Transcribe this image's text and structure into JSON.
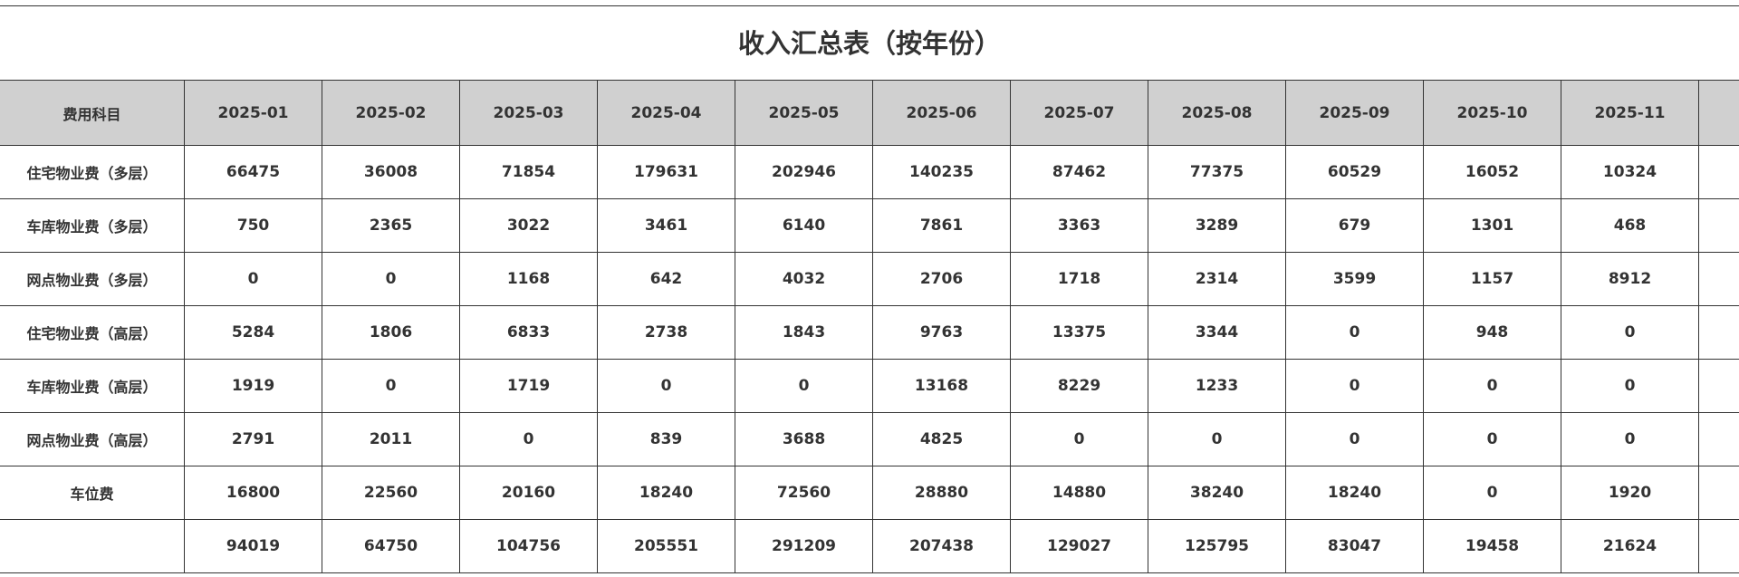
{
  "title": "收入汇总表（按年份）",
  "table": {
    "header": [
      "费用科目",
      "2025-01",
      "2025-02",
      "2025-03",
      "2025-04",
      "2025-05",
      "2025-06",
      "2025-07",
      "2025-08",
      "2025-09",
      "2025-10",
      "2025-11"
    ],
    "rows": [
      {
        "label": "住宅物业费（多层）",
        "values": [
          66475,
          36008,
          71854,
          179631,
          202946,
          140235,
          87462,
          77375,
          60529,
          16052,
          10324
        ]
      },
      {
        "label": "车库物业费（多层）",
        "values": [
          750,
          2365,
          3022,
          3461,
          6140,
          7861,
          3363,
          3289,
          679,
          1301,
          468
        ]
      },
      {
        "label": "网点物业费（多层）",
        "values": [
          0,
          0,
          1168,
          642,
          4032,
          2706,
          1718,
          2314,
          3599,
          1157,
          8912
        ]
      },
      {
        "label": "住宅物业费（高层）",
        "values": [
          5284,
          1806,
          6833,
          2738,
          1843,
          9763,
          13375,
          3344,
          0,
          948,
          0
        ]
      },
      {
        "label": "车库物业费（高层）",
        "values": [
          1919,
          0,
          1719,
          0,
          0,
          13168,
          8229,
          1233,
          0,
          0,
          0
        ]
      },
      {
        "label": "网点物业费（高层）",
        "values": [
          2791,
          2011,
          0,
          839,
          3688,
          4825,
          0,
          0,
          0,
          0,
          0
        ]
      },
      {
        "label": "车位费",
        "values": [
          16800,
          22560,
          20160,
          18240,
          72560,
          28880,
          14880,
          38240,
          18240,
          0,
          1920
        ]
      }
    ],
    "totals": [
      94019,
      64750,
      104756,
      205551,
      291209,
      207438,
      129027,
      125795,
      83047,
      19458,
      21624
    ]
  }
}
